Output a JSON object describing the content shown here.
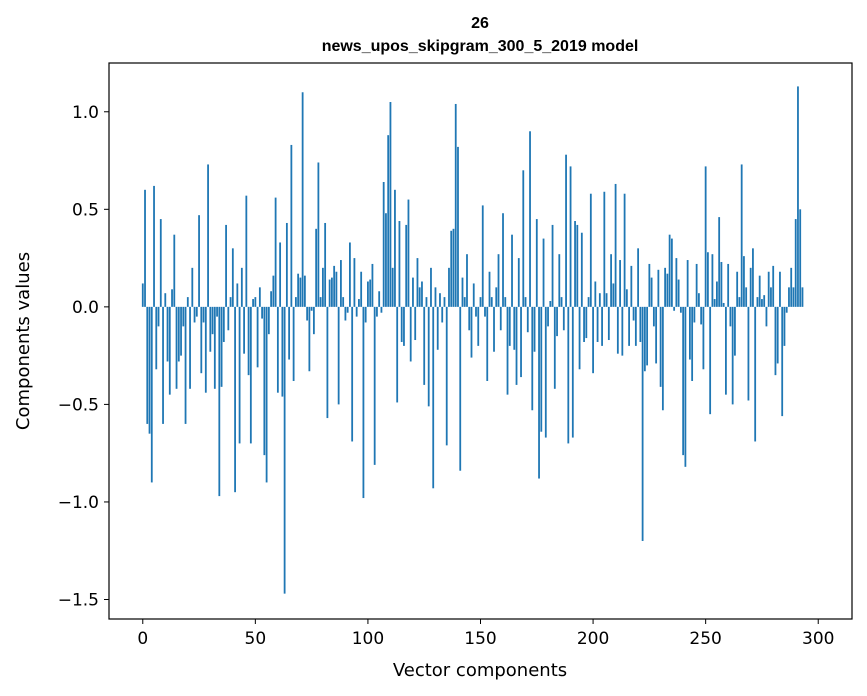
{
  "chart_data": {
    "type": "bar",
    "title": "26",
    "subtitle": "news_upos_skipgram_300_5_2019 model",
    "xlabel": "Vector components",
    "ylabel": "Components values",
    "xlim": [
      -15,
      315
    ],
    "ylim": [
      -1.6,
      1.25
    ],
    "xticks": [
      0,
      50,
      100,
      150,
      200,
      250,
      300
    ],
    "xtick_labels": [
      "0",
      "50",
      "100",
      "150",
      "200",
      "250",
      "300"
    ],
    "yticks": [
      -1.5,
      -1.0,
      -0.5,
      0.0,
      0.5,
      1.0
    ],
    "ytick_labels": [
      "−1.5",
      "−1.0",
      "−0.5",
      "0.0",
      "0.5",
      "1.0"
    ],
    "bar_color": "#1f77b4",
    "values": [
      0.12,
      0.6,
      -0.6,
      -0.65,
      -0.9,
      0.62,
      -0.32,
      -0.1,
      0.45,
      -0.6,
      0.07,
      -0.28,
      -0.45,
      0.09,
      0.37,
      -0.42,
      -0.28,
      -0.25,
      -0.1,
      -0.6,
      0.05,
      -0.42,
      0.2,
      -0.08,
      -0.05,
      0.47,
      -0.34,
      -0.08,
      -0.44,
      0.73,
      -0.23,
      -0.14,
      -0.42,
      -0.05,
      -0.97,
      -0.41,
      -0.18,
      0.42,
      -0.12,
      0.05,
      0.3,
      -0.95,
      0.12,
      -0.7,
      0.2,
      -0.24,
      0.57,
      -0.35,
      -0.7,
      0.04,
      0.05,
      -0.31,
      0.1,
      -0.06,
      -0.76,
      -0.9,
      -0.14,
      0.08,
      0.16,
      0.56,
      -0.44,
      0.33,
      -0.46,
      -1.47,
      0.43,
      -0.27,
      0.83,
      -0.38,
      0.05,
      0.17,
      0.15,
      1.1,
      0.16,
      -0.07,
      -0.33,
      -0.02,
      -0.14,
      0.4,
      0.74,
      0.05,
      0.2,
      0.43,
      -0.57,
      0.14,
      0.15,
      0.21,
      0.18,
      -0.5,
      0.24,
      0.05,
      -0.07,
      -0.03,
      0.33,
      -0.69,
      0.25,
      -0.05,
      0.04,
      0.18,
      -0.98,
      -0.08,
      0.13,
      0.14,
      0.22,
      -0.81,
      -0.05,
      0.08,
      -0.03,
      0.64,
      0.48,
      0.88,
      1.05,
      0.2,
      0.6,
      -0.49,
      0.44,
      -0.18,
      -0.2,
      0.42,
      0.55,
      -0.28,
      0.15,
      -0.17,
      0.25,
      0.1,
      0.13,
      -0.4,
      0.05,
      -0.51,
      0.2,
      -0.93,
      0.1,
      -0.22,
      0.07,
      -0.08,
      0.05,
      -0.71,
      0.2,
      0.39,
      0.4,
      1.04,
      0.82,
      -0.84,
      0.15,
      0.05,
      0.27,
      -0.12,
      -0.26,
      0.12,
      -0.05,
      -0.2,
      0.05,
      0.52,
      -0.05,
      -0.38,
      0.18,
      0.05,
      -0.23,
      0.1,
      0.27,
      -0.12,
      0.48,
      0.05,
      -0.45,
      -0.2,
      0.37,
      -0.22,
      -0.4,
      0.25,
      -0.36,
      0.7,
      0.05,
      -0.13,
      0.9,
      -0.53,
      -0.23,
      0.45,
      -0.88,
      -0.64,
      0.35,
      -0.67,
      -0.1,
      0.03,
      0.42,
      -0.42,
      -0.15,
      0.27,
      0.05,
      -0.12,
      0.78,
      -0.7,
      0.72,
      -0.67,
      0.44,
      0.42,
      -0.32,
      0.38,
      -0.18,
      -0.16,
      0.05,
      0.58,
      -0.34,
      0.13,
      -0.18,
      0.07,
      -0.2,
      0.59,
      0.07,
      -0.17,
      0.27,
      0.12,
      0.63,
      -0.24,
      0.24,
      -0.25,
      0.58,
      0.09,
      -0.2,
      0.21,
      -0.07,
      -0.2,
      0.3,
      -0.18,
      -1.2,
      -0.33,
      -0.3,
      0.22,
      0.15,
      -0.1,
      -0.29,
      0.19,
      -0.41,
      -0.53,
      0.2,
      0.17,
      0.37,
      0.35,
      -0.02,
      0.25,
      0.14,
      -0.03,
      -0.76,
      -0.82,
      0.24,
      -0.27,
      -0.38,
      -0.08,
      0.22,
      0.07,
      -0.09,
      -0.32,
      0.72,
      0.28,
      -0.55,
      0.27,
      0.04,
      0.13,
      0.46,
      0.23,
      0.02,
      -0.45,
      0.22,
      -0.1,
      -0.5,
      -0.25,
      0.18,
      0.05,
      0.73,
      0.26,
      0.1,
      -0.48,
      0.2,
      0.3,
      -0.69,
      0.05,
      0.16,
      0.04,
      0.06,
      -0.1,
      0.18,
      0.1,
      0.21,
      -0.35,
      -0.29,
      0.18,
      -0.56,
      -0.2,
      -0.03,
      0.1,
      0.2,
      0.1,
      0.45,
      1.13,
      0.5,
      0.1
    ]
  }
}
